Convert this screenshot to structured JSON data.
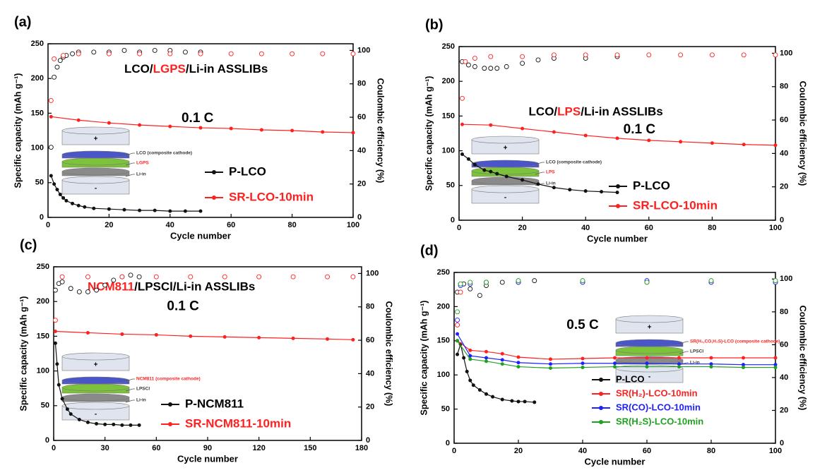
{
  "chart_data": [
    {
      "type": "line",
      "panel_label": "(a)",
      "title_parts": [
        {
          "text": "LCO/",
          "color": "#000000"
        },
        {
          "text": "LGPS",
          "color": "#ff2020"
        },
        {
          "text": "/Li-in ASSLIBs",
          "color": "#000000"
        }
      ],
      "annotation": "0.1 C",
      "x_label": "Cycle number",
      "y_label": "Specific capacity (mAh g⁻¹)",
      "y2_label": "Coulombic efficiency (%)",
      "xlim": [
        0,
        100
      ],
      "xticks": [
        0,
        20,
        40,
        60,
        80,
        100
      ],
      "ylim": [
        0,
        250
      ],
      "yticks": [
        0,
        50,
        100,
        150,
        200,
        250
      ],
      "y2lim": [
        0,
        104
      ],
      "y2ticks": [
        0,
        20,
        40,
        60,
        80,
        100
      ],
      "legend": "lower right",
      "series": [
        {
          "name": "P-LCO",
          "color": "#111111",
          "x": [
            1,
            2,
            3,
            4,
            5,
            6,
            8,
            10,
            12,
            15,
            20,
            25,
            30,
            35,
            40,
            45,
            50
          ],
          "values": [
            60,
            48,
            40,
            33,
            28,
            24,
            20,
            17,
            15,
            13,
            12,
            11,
            10,
            10,
            9,
            9,
            9
          ]
        },
        {
          "name": "SR-LCO-10min",
          "color": "#ff2020",
          "x": [
            1,
            10,
            20,
            30,
            40,
            50,
            60,
            70,
            80,
            90,
            100
          ],
          "values": [
            145,
            140,
            136,
            133,
            131,
            129,
            128,
            126,
            125,
            123,
            122
          ]
        }
      ],
      "y2_series": [
        {
          "color": "#111111",
          "axis": "y2",
          "x": [
            1,
            2,
            3,
            4,
            5,
            6,
            8,
            10,
            15,
            20,
            25,
            30,
            35,
            40,
            45,
            50
          ],
          "values": [
            42,
            84,
            90,
            94,
            96,
            97,
            98,
            99,
            99,
            99,
            100,
            99,
            100,
            100,
            99,
            99
          ]
        },
        {
          "color": "#ff2020",
          "axis": "y2",
          "x": [
            1,
            2,
            5,
            10,
            20,
            30,
            40,
            50,
            60,
            70,
            80,
            90,
            100
          ],
          "values": [
            70,
            95,
            97,
            98,
            98,
            98,
            98,
            98,
            98,
            98,
            98,
            98,
            98
          ]
        }
      ],
      "inset": {
        "labels": [
          "+",
          "LCO (composite cathode)",
          "LGPS",
          "Li-in",
          "-"
        ],
        "colors": [
          "#000000",
          "#333333",
          "#ff2020",
          "#333333",
          "#000000"
        ]
      }
    },
    {
      "type": "line",
      "panel_label": "(b)",
      "title_parts": [
        {
          "text": "LCO/",
          "color": "#000000"
        },
        {
          "text": "LPS",
          "color": "#ff2020"
        },
        {
          "text": "/Li-in ASSLIBs",
          "color": "#000000"
        }
      ],
      "annotation": "0.1 C",
      "x_label": "Cycle number",
      "y_label": "Specific capacity (mAh g⁻¹)",
      "y2_label": "Coulombic efficiency (%)",
      "xlim": [
        0,
        100
      ],
      "xticks": [
        0,
        20,
        40,
        60,
        80,
        100
      ],
      "ylim": [
        0,
        250
      ],
      "yticks": [
        0,
        50,
        100,
        150,
        200,
        250
      ],
      "y2lim": [
        0,
        104
      ],
      "y2ticks": [
        0,
        20,
        40,
        60,
        80,
        100
      ],
      "legend": "lower right",
      "series": [
        {
          "name": "P-LCO",
          "color": "#111111",
          "x": [
            1,
            3,
            5,
            8,
            10,
            12,
            15,
            20,
            25,
            30,
            35,
            40,
            45,
            50
          ],
          "values": [
            95,
            88,
            80,
            72,
            70,
            67,
            63,
            58,
            52,
            47,
            44,
            42,
            41,
            40
          ]
        },
        {
          "name": "SR-LCO-10min",
          "color": "#ff2020",
          "x": [
            1,
            10,
            20,
            30,
            40,
            50,
            60,
            70,
            80,
            90,
            100
          ],
          "values": [
            138,
            137,
            132,
            127,
            122,
            118,
            115,
            113,
            111,
            109,
            108
          ]
        }
      ],
      "y2_series": [
        {
          "color": "#111111",
          "axis": "y2",
          "x": [
            1,
            3,
            5,
            8,
            10,
            12,
            15,
            20,
            25,
            30,
            40,
            50
          ],
          "values": [
            95,
            93,
            92,
            91,
            91,
            91,
            92,
            94,
            96,
            97,
            97,
            98
          ]
        },
        {
          "color": "#ff2020",
          "axis": "y2",
          "x": [
            1,
            2,
            5,
            10,
            20,
            30,
            40,
            50,
            60,
            70,
            80,
            90,
            100
          ],
          "values": [
            73,
            95,
            97,
            98,
            98,
            99,
            99,
            99,
            99,
            99,
            99,
            99,
            99
          ]
        }
      ],
      "inset": {
        "labels": [
          "+",
          "LCO (composite cathode)",
          "LPS",
          "Li-in",
          "-"
        ],
        "colors": [
          "#000000",
          "#333333",
          "#ff2020",
          "#333333",
          "#000000"
        ]
      }
    },
    {
      "type": "line",
      "panel_label": "(c)",
      "title_parts": [
        {
          "text": "NCM811",
          "color": "#ff2020"
        },
        {
          "text": "/LPSCl/Li-in ASSLIBs",
          "color": "#000000"
        }
      ],
      "annotation": "0.1 C",
      "x_label": "Cycle number",
      "y_label": "Specific capacity (mAh g⁻¹)",
      "y2_label": "Coulombic efficiency (%)",
      "xlim": [
        0,
        180
      ],
      "xticks": [
        0,
        30,
        60,
        90,
        120,
        150,
        180
      ],
      "ylim": [
        0,
        250
      ],
      "yticks": [
        0,
        50,
        100,
        150,
        200,
        250
      ],
      "y2lim": [
        0,
        104
      ],
      "y2ticks": [
        0,
        20,
        40,
        60,
        80,
        100
      ],
      "legend": "lower right",
      "series": [
        {
          "name": "P-NCM811",
          "color": "#111111",
          "x": [
            1,
            2,
            3,
            5,
            8,
            10,
            15,
            20,
            25,
            30,
            35,
            40,
            45,
            50
          ],
          "values": [
            140,
            110,
            80,
            60,
            45,
            38,
            30,
            26,
            24,
            23,
            23,
            22,
            22,
            22
          ]
        },
        {
          "name": "SR-NCM811-10min",
          "color": "#ff2020",
          "x": [
            1,
            20,
            40,
            60,
            80,
            100,
            120,
            140,
            160,
            175
          ],
          "values": [
            157,
            155,
            153,
            152,
            150,
            149,
            148,
            147,
            146,
            145
          ]
        }
      ],
      "y2_series": [
        {
          "color": "#111111",
          "axis": "y2",
          "x": [
            1,
            3,
            5,
            10,
            15,
            20,
            25,
            30,
            35,
            40,
            45,
            50
          ],
          "values": [
            90,
            94,
            95,
            91,
            89,
            89,
            90,
            93,
            96,
            98,
            99,
            98
          ]
        },
        {
          "color": "#ff2020",
          "axis": "y2",
          "x": [
            1,
            5,
            20,
            40,
            60,
            80,
            100,
            120,
            140,
            160,
            175
          ],
          "values": [
            72,
            98,
            98,
            98,
            98,
            98,
            98,
            98,
            98,
            98,
            98
          ]
        }
      ],
      "inset": {
        "labels": [
          "+",
          "NCM811 (composite cathode)",
          "LPSCl",
          "Li-in",
          "-"
        ],
        "colors": [
          "#000000",
          "#ff2020",
          "#333333",
          "#333333",
          "#000000"
        ]
      }
    },
    {
      "type": "line",
      "panel_label": "(d)",
      "annotation": "0.5 C",
      "x_label": "Cycle number",
      "y_label": "Specific capacity (mAh g⁻¹)",
      "y2_label": "Coulombic efficiency (%)",
      "xlim": [
        0,
        100
      ],
      "xticks": [
        0,
        20,
        40,
        60,
        80,
        100
      ],
      "ylim": [
        0,
        250
      ],
      "yticks": [
        0,
        50,
        100,
        150,
        200,
        250
      ],
      "y2lim": [
        0,
        104
      ],
      "y2ticks": [
        0,
        20,
        40,
        60,
        80,
        100
      ],
      "legend": "lower right",
      "series": [
        {
          "name": "P-LCO",
          "color": "#111111",
          "x": [
            1,
            2,
            3,
            4,
            5,
            6,
            8,
            10,
            12,
            15,
            18,
            20,
            22,
            25
          ],
          "values": [
            130,
            145,
            125,
            105,
            92,
            85,
            78,
            72,
            68,
            64,
            62,
            61,
            61,
            60
          ]
        },
        {
          "name": "SR(H₂)-LCO-10min",
          "color": "#ff2020",
          "x": [
            1,
            5,
            10,
            15,
            20,
            30,
            40,
            50,
            60,
            70,
            80,
            90,
            100
          ],
          "values": [
            150,
            136,
            134,
            131,
            126,
            123,
            124,
            125,
            125,
            125,
            125,
            125,
            125
          ]
        },
        {
          "name": "SR(CO)-LCO-10min",
          "color": "#2020ff",
          "x": [
            1,
            5,
            10,
            15,
            20,
            30,
            40,
            50,
            60,
            70,
            80,
            90,
            100
          ],
          "values": [
            160,
            128,
            125,
            122,
            118,
            116,
            117,
            117,
            117,
            116,
            116,
            115,
            115
          ]
        },
        {
          "name": "SR(H₂S)-LCO-10min",
          "color": "#20a020",
          "x": [
            1,
            5,
            10,
            15,
            20,
            30,
            40,
            50,
            60,
            70,
            80,
            90,
            100
          ],
          "values": [
            150,
            123,
            120,
            116,
            112,
            110,
            111,
            112,
            112,
            112,
            112,
            111,
            111
          ]
        }
      ],
      "y2_series": [
        {
          "color": "#111111",
          "axis": "y2",
          "x": [
            1,
            2,
            3,
            5,
            8,
            10,
            15,
            20,
            25
          ],
          "values": [
            92,
            97,
            97,
            94,
            90,
            96,
            98,
            98,
            99
          ]
        },
        {
          "color": "#ff2020",
          "axis": "y2",
          "x": [
            1,
            2,
            5,
            10,
            20,
            40,
            60,
            80,
            100
          ],
          "values": [
            72,
            92,
            97,
            98,
            98,
            98,
            98,
            98,
            98
          ]
        },
        {
          "color": "#2020ff",
          "axis": "y2",
          "x": [
            1,
            2,
            5,
            10,
            20,
            40,
            60,
            80,
            100
          ],
          "values": [
            75,
            96,
            97,
            98,
            98,
            98,
            99,
            98,
            98
          ]
        },
        {
          "color": "#20a020",
          "axis": "y2",
          "x": [
            1,
            2,
            5,
            10,
            20,
            40,
            60,
            80,
            100
          ],
          "values": [
            80,
            97,
            98,
            98,
            99,
            99,
            98,
            99,
            99
          ]
        }
      ],
      "inset": {
        "labels": [
          "+",
          "SR(H₂,CO,H₂S)-LCO (composite cathode)",
          "LPSCl",
          "Li-in",
          "-"
        ],
        "colors": [
          "#000000",
          "#ff2020",
          "#333333",
          "#333333",
          "#000000"
        ]
      }
    }
  ]
}
